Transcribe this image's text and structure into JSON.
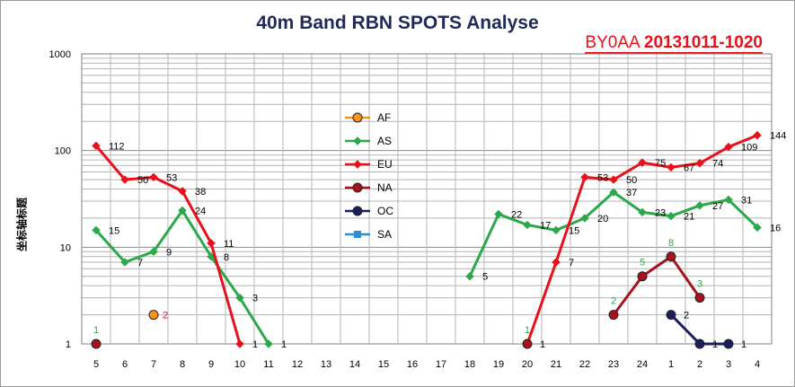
{
  "chart_data": {
    "type": "line",
    "title": "40m Band RBN SPOTS Analyse",
    "subtitle_call": "BY0AA",
    "subtitle_date": "20131011-1020",
    "ylabel": "坐标轴标题",
    "xlabel": "",
    "yscale": "log",
    "ylim": [
      1,
      1000
    ],
    "yticks": [
      "1",
      "10",
      "100",
      "1000"
    ],
    "categories": [
      "5",
      "6",
      "7",
      "8",
      "9",
      "10",
      "11",
      "12",
      "13",
      "14",
      "15",
      "16",
      "17",
      "18",
      "19",
      "20",
      "21",
      "22",
      "23",
      "24",
      "1",
      "2",
      "3",
      "4"
    ],
    "grid": true,
    "legend_position": "center",
    "series": [
      {
        "name": "AF",
        "color": "#f7941d",
        "marker": "circle",
        "label_color": "#e8101a",
        "values": [
          null,
          null,
          2,
          null,
          null,
          null,
          null,
          null,
          null,
          null,
          null,
          null,
          null,
          null,
          null,
          null,
          null,
          null,
          null,
          null,
          null,
          null,
          null,
          null
        ]
      },
      {
        "name": "AS",
        "color": "#2aa84a",
        "marker": "diamond",
        "label_color": "#000000",
        "values": [
          15,
          7,
          9,
          24,
          8,
          3,
          1,
          null,
          null,
          null,
          null,
          null,
          null,
          5,
          22,
          17,
          15,
          20,
          37,
          23,
          21,
          27,
          31,
          16
        ]
      },
      {
        "name": "EU",
        "color": "#e8101a",
        "marker": "diamond",
        "label_color": "#000000",
        "values": [
          112,
          50,
          53,
          38,
          11,
          1,
          null,
          null,
          null,
          null,
          null,
          null,
          null,
          null,
          null,
          1,
          7,
          53,
          50,
          75,
          67,
          74,
          109,
          144
        ]
      },
      {
        "name": "NA",
        "color": "#a5141d",
        "marker": "circle",
        "label_color": "#2aa84a",
        "values": [
          1,
          null,
          null,
          null,
          null,
          null,
          null,
          null,
          null,
          null,
          null,
          null,
          null,
          null,
          null,
          1,
          null,
          null,
          2,
          5,
          8,
          3,
          null,
          null
        ]
      },
      {
        "name": "OC",
        "color": "#1b1f5e",
        "marker": "circle",
        "label_color": "#000000",
        "values": [
          null,
          null,
          null,
          null,
          null,
          null,
          null,
          null,
          null,
          null,
          null,
          null,
          null,
          null,
          null,
          null,
          null,
          null,
          null,
          null,
          2,
          1,
          1,
          null
        ]
      },
      {
        "name": "SA",
        "color": "#2b8fd6",
        "marker": "square",
        "label_color": "#000000",
        "values": [
          null,
          null,
          null,
          null,
          null,
          null,
          null,
          null,
          null,
          null,
          null,
          null,
          null,
          null,
          null,
          null,
          null,
          null,
          null,
          null,
          null,
          null,
          null,
          null
        ]
      }
    ]
  }
}
